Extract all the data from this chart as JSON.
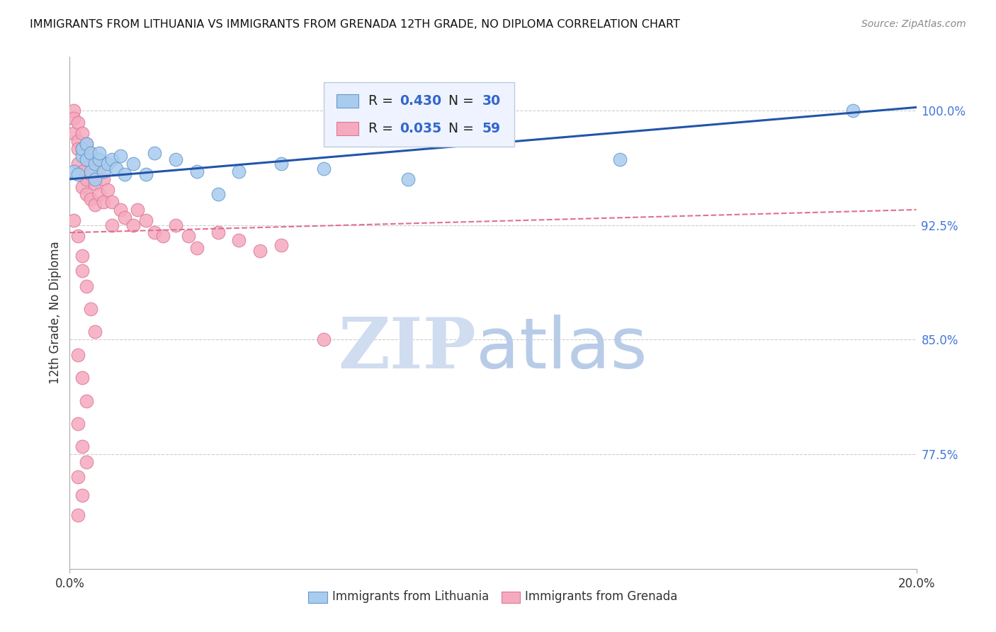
{
  "title": "IMMIGRANTS FROM LITHUANIA VS IMMIGRANTS FROM GRENADA 12TH GRADE, NO DIPLOMA CORRELATION CHART",
  "source_text": "Source: ZipAtlas.com",
  "ylabel": "12th Grade, No Diploma",
  "xlim": [
    0.0,
    0.2
  ],
  "ylim": [
    0.7,
    1.035
  ],
  "ytick_labels": [
    "100.0%",
    "92.5%",
    "85.0%",
    "77.5%"
  ],
  "ytick_values": [
    1.0,
    0.925,
    0.85,
    0.775
  ],
  "xtick_values": [
    0.0,
    0.2
  ],
  "xtick_labels": [
    "0.0%",
    "20.0%"
  ],
  "background_color": "#ffffff",
  "grid_color": "#cccccc",
  "lithuania_color": "#A8CCEE",
  "grenada_color": "#F5AABF",
  "lithuania_edge": "#6699CC",
  "grenada_edge": "#DD7799",
  "R_lithuania": 0.43,
  "N_lithuania": 30,
  "R_grenada": 0.035,
  "N_grenada": 59,
  "trendline_blue_color": "#2255AA",
  "trendline_pink_color": "#E07090",
  "watermark_zip_color": "#D0DCF0",
  "watermark_atlas_color": "#B8CCE8",
  "lithuania_x": [
    0.001,
    0.002,
    0.003,
    0.003,
    0.004,
    0.004,
    0.005,
    0.005,
    0.006,
    0.006,
    0.007,
    0.007,
    0.008,
    0.009,
    0.01,
    0.011,
    0.012,
    0.013,
    0.015,
    0.018,
    0.02,
    0.025,
    0.03,
    0.035,
    0.04,
    0.05,
    0.06,
    0.08,
    0.13,
    0.185
  ],
  "lithuania_y": [
    0.96,
    0.958,
    0.97,
    0.975,
    0.968,
    0.978,
    0.96,
    0.972,
    0.965,
    0.955,
    0.968,
    0.972,
    0.96,
    0.965,
    0.968,
    0.962,
    0.97,
    0.958,
    0.965,
    0.958,
    0.972,
    0.968,
    0.96,
    0.945,
    0.96,
    0.965,
    0.962,
    0.955,
    0.968,
    1.0
  ],
  "grenada_x": [
    0.001,
    0.001,
    0.001,
    0.002,
    0.002,
    0.002,
    0.002,
    0.003,
    0.003,
    0.003,
    0.003,
    0.004,
    0.004,
    0.004,
    0.004,
    0.005,
    0.005,
    0.005,
    0.006,
    0.006,
    0.006,
    0.007,
    0.007,
    0.008,
    0.008,
    0.009,
    0.01,
    0.01,
    0.012,
    0.013,
    0.015,
    0.016,
    0.018,
    0.02,
    0.022,
    0.025,
    0.028,
    0.03,
    0.035,
    0.04,
    0.045,
    0.05,
    0.06,
    0.001,
    0.002,
    0.003,
    0.003,
    0.004,
    0.005,
    0.006,
    0.002,
    0.003,
    0.004,
    0.002,
    0.003,
    0.004,
    0.002,
    0.003,
    0.002
  ],
  "grenada_y": [
    1.0,
    0.995,
    0.985,
    0.992,
    0.98,
    0.975,
    0.965,
    0.985,
    0.975,
    0.96,
    0.95,
    0.978,
    0.968,
    0.955,
    0.945,
    0.972,
    0.958,
    0.942,
    0.965,
    0.952,
    0.938,
    0.962,
    0.945,
    0.955,
    0.94,
    0.948,
    0.94,
    0.925,
    0.935,
    0.93,
    0.925,
    0.935,
    0.928,
    0.92,
    0.918,
    0.925,
    0.918,
    0.91,
    0.92,
    0.915,
    0.908,
    0.912,
    0.85,
    0.928,
    0.918,
    0.905,
    0.895,
    0.885,
    0.87,
    0.855,
    0.84,
    0.825,
    0.81,
    0.795,
    0.78,
    0.77,
    0.76,
    0.748,
    0.735
  ]
}
